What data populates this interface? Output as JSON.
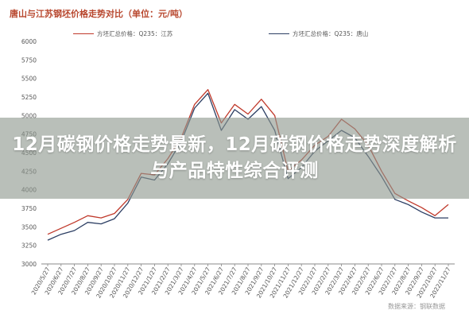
{
  "title": "唐山与江苏钢坯价格走势对比（单位：元/吨）",
  "banner": "12月碳钢价格走势最新，12月碳钢价格走势深度解析与产品特性综合评测",
  "source": "数据来源：钢联数据",
  "colors": {
    "series_jiangsu": "#c0392b",
    "series_tangshan": "#2c3e63",
    "banner": "#8e988e",
    "title": "#b8472e"
  },
  "chart_data": {
    "type": "line",
    "title": "唐山与江苏钢坯价格走势对比（单位：元/吨）",
    "xlabel": "",
    "ylabel": "",
    "ylim": [
      3000,
      6000
    ],
    "yticks": [
      3000,
      3250,
      3500,
      3750,
      4000,
      4250,
      4500,
      4750,
      5000,
      5250,
      5500,
      5750,
      6000
    ],
    "grid": false,
    "legend_position": "top",
    "x": [
      "2020/5/27",
      "2020/6/27",
      "2020/7/27",
      "2020/8/27",
      "2020/9/27",
      "2020/10/27",
      "2020/11/27",
      "2020/12/27",
      "2021/1/27",
      "2021/2/27",
      "2021/3/27",
      "2021/4/27",
      "2021/5/27",
      "2021/6/27",
      "2021/7/27",
      "2021/8/27",
      "2021/9/27",
      "2021/10/27",
      "2021/11/27",
      "2021/12/27",
      "2022/1/27",
      "2022/2/27",
      "2022/3/27",
      "2022/4/27",
      "2022/5/27",
      "2022/6/27",
      "2022/7/27",
      "2022/8/27",
      "2022/9/27",
      "2022/10/27",
      "2022/11/27"
    ],
    "series": [
      {
        "name": "方坯汇总价格：Q235：江苏",
        "values": [
          3400,
          3480,
          3560,
          3650,
          3620,
          3680,
          3870,
          4220,
          4200,
          4420,
          4700,
          5150,
          5350,
          4900,
          5150,
          5020,
          5220,
          5000,
          4250,
          4400,
          4600,
          4720,
          4950,
          4820,
          4600,
          4250,
          3950,
          3850,
          3760,
          3650,
          3800
        ]
      },
      {
        "name": "方坯汇总价格：Q235：唐山",
        "values": [
          3320,
          3400,
          3450,
          3560,
          3540,
          3610,
          3820,
          4170,
          4130,
          4350,
          4650,
          5100,
          5300,
          4800,
          5080,
          4950,
          5120,
          4800,
          4150,
          4300,
          4520,
          4660,
          4800,
          4700,
          4450,
          4180,
          3870,
          3800,
          3700,
          3620,
          3620
        ]
      }
    ]
  }
}
